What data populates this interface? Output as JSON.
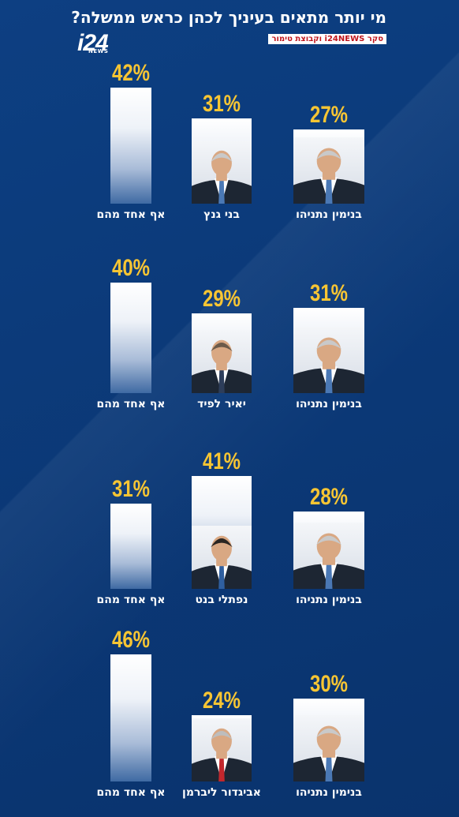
{
  "header": {
    "title": "מי יותר מתאים בעיניך לכהן כראש ממשלה?",
    "logo": "i24",
    "logo_sub": "NEWS",
    "source": "סקר i24NEWS וקבוצת טימור"
  },
  "chart_data": [
    {
      "type": "bar",
      "categories": [
        "בנימין נתניהו",
        "בני גנץ",
        "אף אחד מהם"
      ],
      "values": [
        27,
        31,
        42
      ],
      "labels": [
        "27%",
        "31%",
        "42%"
      ]
    },
    {
      "type": "bar",
      "categories": [
        "בנימין נתניהו",
        "יאיר לפיד",
        "אף אחד מהם"
      ],
      "values": [
        31,
        29,
        40
      ],
      "labels": [
        "31%",
        "29%",
        "40%"
      ]
    },
    {
      "type": "bar",
      "categories": [
        "בנימין נתניהו",
        "נפתלי בנט",
        "אף אחד מהם"
      ],
      "values": [
        28,
        41,
        31
      ],
      "labels": [
        "28%",
        "41%",
        "31%"
      ]
    },
    {
      "type": "bar",
      "categories": [
        "בנימין נתניהו",
        "אביגדור ליברמן",
        "אף אחד מהם"
      ],
      "values": [
        30,
        24,
        46
      ],
      "labels": [
        "30%",
        "24%",
        "46%"
      ]
    }
  ],
  "colors": {
    "background": "#0b3a78",
    "percent": "#f7c533",
    "label": "#ffffff",
    "source_text": "#c0141c"
  }
}
